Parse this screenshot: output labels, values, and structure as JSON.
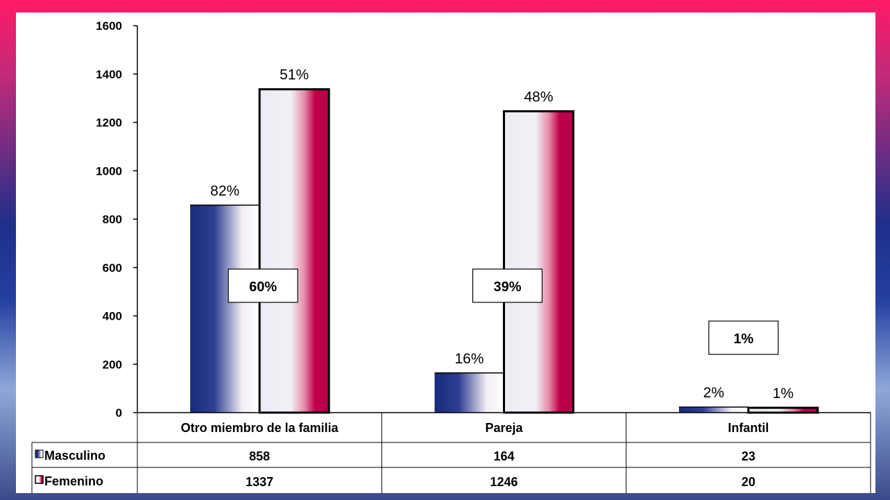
{
  "chart_data": {
    "type": "bar",
    "categories": [
      "Otro miembro de la familia",
      "Pareja",
      "Infantil"
    ],
    "series": [
      {
        "name": "Masculino",
        "values": [
          858,
          164,
          23
        ],
        "pct_labels": [
          "82%",
          "16%",
          "2%"
        ],
        "color": "#1a2a7a"
      },
      {
        "name": "Femenino",
        "values": [
          1337,
          1246,
          20
        ],
        "pct_labels": [
          "51%",
          "48%",
          "1%"
        ],
        "color": "#c0004a"
      }
    ],
    "category_totals_pct": [
      "60%",
      "39%",
      "1%"
    ],
    "ylim": [
      0,
      1600
    ],
    "yticks": [
      0,
      200,
      400,
      600,
      800,
      1000,
      1200,
      1400,
      1600
    ],
    "title": "",
    "xlabel": "",
    "ylabel": "",
    "legend": "data-table"
  }
}
